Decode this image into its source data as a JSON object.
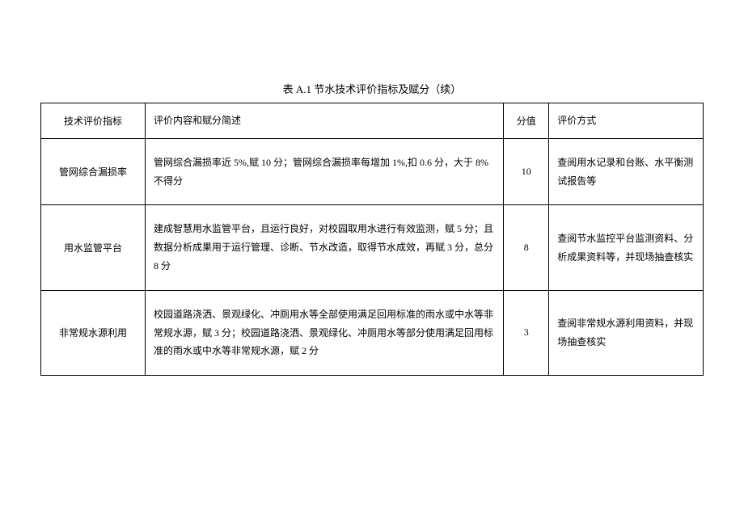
{
  "table": {
    "title": "表 A.1 节水技术评价指标及赋分（续）",
    "headers": {
      "indicator": "技术评价指标",
      "content": "评价内容和赋分简述",
      "score": "分值",
      "method": "评价方式"
    },
    "rows": [
      {
        "indicator": "管网综合漏损率",
        "content": "管网综合漏损率近 5%,赋 10 分；管网综合漏损率每增加 1%,扣 0.6 分，大于 8%不得分",
        "score": "10",
        "method": "查阅用水记录和台账、水平衡测试报告等"
      },
      {
        "indicator": "用水监管平台",
        "content": "建成智慧用水监管平台，且运行良好，对校园取用水进行有效监测，赋 5 分；且数据分析成果用于运行管理、诊断、节水改造，取得节水成效，再赋 3 分，总分 8 分",
        "score": "8",
        "method": "查阅节水监控平台监测资料、分析成果资料等，并现场抽查核实"
      },
      {
        "indicator": "非常规水源利用",
        "content": "校园道路浇洒、景观绿化、冲厕用水等全部使用满足回用标准的雨水或中水等非常规水源，赋 3 分；校园道路浇洒、景观绿化、冲厕用水等部分使用满足回用标准的雨水或中水等非常规水源，赋 2 分",
        "score": "3",
        "method": "查阅非常规水源利用资料，并现场抽查核实"
      }
    ]
  }
}
